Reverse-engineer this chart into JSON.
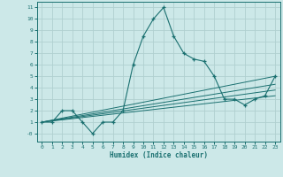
{
  "xlabel": "Humidex (Indice chaleur)",
  "bg_color": "#cce8e8",
  "grid_color": "#b0d0d0",
  "line_color": "#1a7070",
  "xlim": [
    -0.5,
    23.5
  ],
  "ylim": [
    -0.7,
    11.5
  ],
  "xticks": [
    0,
    1,
    2,
    3,
    4,
    5,
    6,
    7,
    8,
    9,
    10,
    11,
    12,
    13,
    14,
    15,
    16,
    17,
    18,
    19,
    20,
    21,
    22,
    23
  ],
  "yticks": [
    0,
    1,
    2,
    3,
    4,
    5,
    6,
    7,
    8,
    9,
    10,
    11
  ],
  "ytick_labels": [
    "-0",
    "1",
    "2",
    "3",
    "4",
    "5",
    "6",
    "7",
    "8",
    "9",
    "10",
    "11"
  ],
  "main_x": [
    0,
    1,
    2,
    3,
    4,
    5,
    6,
    7,
    8,
    9,
    10,
    11,
    12,
    13,
    14,
    15,
    16,
    17,
    18,
    19,
    20,
    21,
    22,
    23
  ],
  "main_y": [
    1,
    1,
    2,
    2,
    1,
    0,
    1,
    1,
    2,
    6,
    8.5,
    10,
    11,
    8.5,
    7,
    6.5,
    6.3,
    5,
    3,
    3,
    2.5,
    3,
    3.3,
    5
  ],
  "trend_lines": [
    {
      "x": [
        0,
        23
      ],
      "y": [
        1.0,
        5.0
      ]
    },
    {
      "x": [
        0,
        23
      ],
      "y": [
        1.0,
        4.3
      ]
    },
    {
      "x": [
        0,
        23
      ],
      "y": [
        1.0,
        3.8
      ]
    },
    {
      "x": [
        0,
        23
      ],
      "y": [
        1.0,
        3.3
      ]
    }
  ]
}
